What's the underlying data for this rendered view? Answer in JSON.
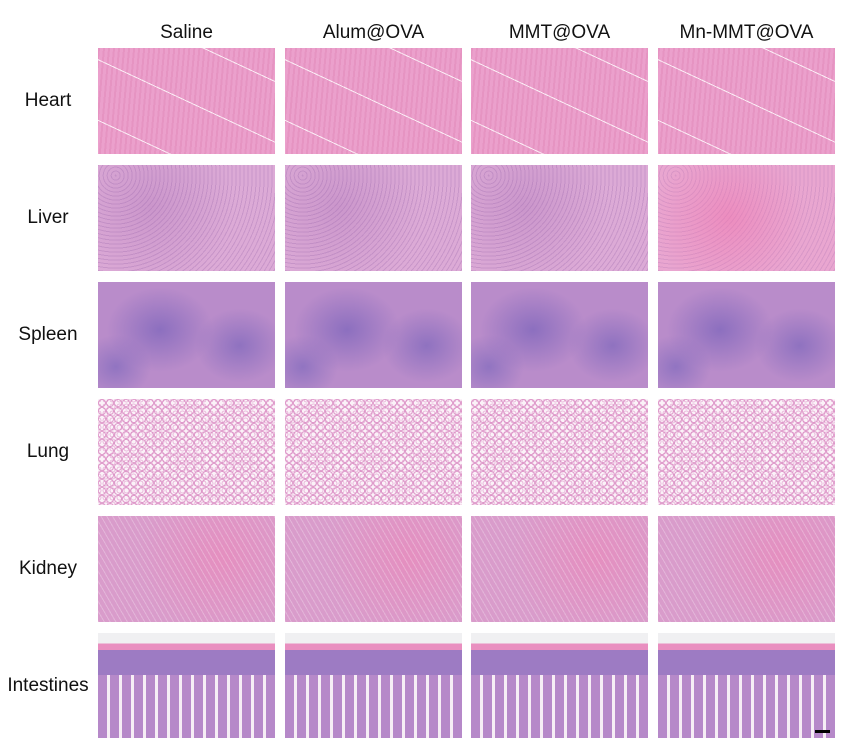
{
  "columns": [
    "Saline",
    "Alum@OVA",
    "MMT@OVA",
    "Mn-MMT@OVA"
  ],
  "rows": [
    "Heart",
    "Liver",
    "Spleen",
    "Lung",
    "Kidney",
    "Intestines"
  ],
  "tile_types": [
    "heart",
    "liver",
    "spleen",
    "lung",
    "kidney",
    "intestine"
  ],
  "colors": {
    "eosin": "#eba0cc",
    "hematoxylin": "#8c6fbf",
    "background": "#ffffff"
  },
  "scale_bar": true
}
